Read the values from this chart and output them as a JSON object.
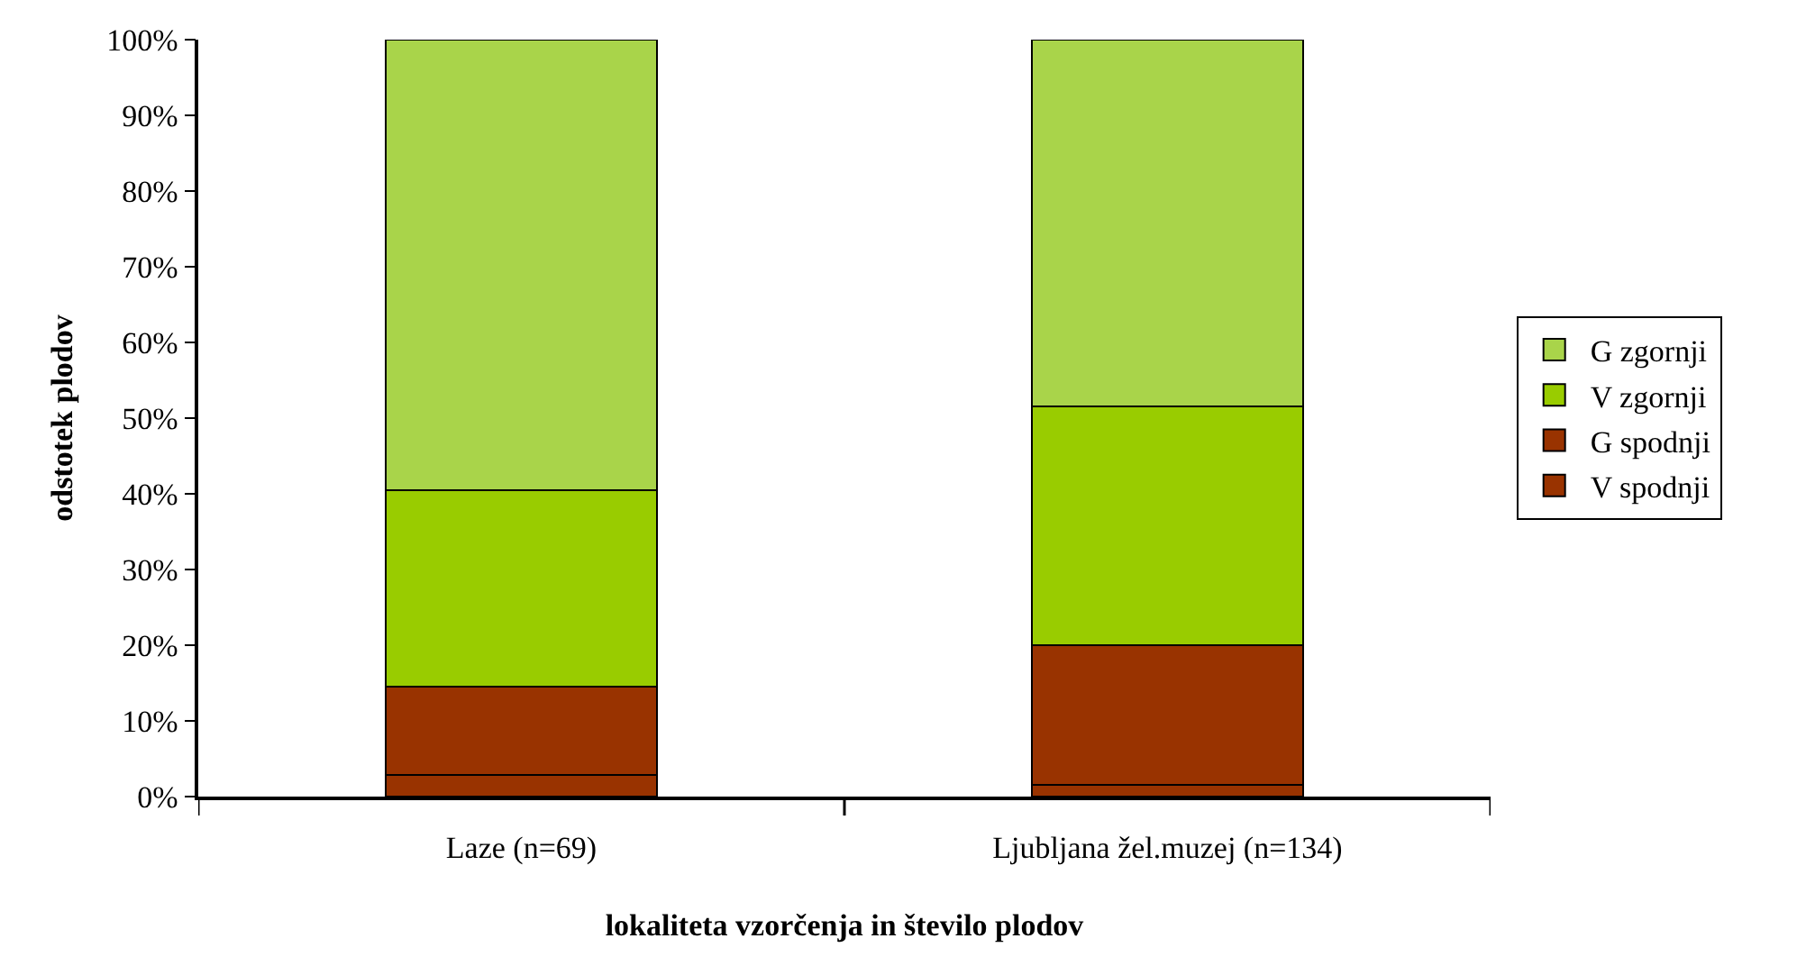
{
  "chart_data": {
    "type": "bar",
    "stacked": true,
    "xlabel": "lokaliteta vzorčenja in število plodov",
    "ylabel": "odstotek plodov",
    "categories": [
      "Laze (n=69)",
      "Ljubljana žel.muzej (n=134)"
    ],
    "series": [
      {
        "name": "V spodnji",
        "color": "#993300",
        "values": [
          2.9,
          1.5
        ]
      },
      {
        "name": "G spodnji",
        "color": "#993300",
        "values": [
          11.6,
          18.5
        ]
      },
      {
        "name": "V zgornji",
        "color": "#99cc00",
        "values": [
          26.0,
          31.5
        ]
      },
      {
        "name": "G zgornji",
        "color": "#a9d44a",
        "values": [
          59.5,
          48.5
        ]
      }
    ],
    "ylim": [
      0,
      100
    ],
    "yticks": [
      {
        "value": 0,
        "label": "0%"
      },
      {
        "value": 10,
        "label": "10%"
      },
      {
        "value": 20,
        "label": "20%"
      },
      {
        "value": 30,
        "label": "30%"
      },
      {
        "value": 40,
        "label": "40%"
      },
      {
        "value": 50,
        "label": "50%"
      },
      {
        "value": 60,
        "label": "60%"
      },
      {
        "value": 70,
        "label": "70%"
      },
      {
        "value": 80,
        "label": "80%"
      },
      {
        "value": 90,
        "label": "90%"
      },
      {
        "value": 100,
        "label": "100%"
      }
    ],
    "legend": "right"
  }
}
